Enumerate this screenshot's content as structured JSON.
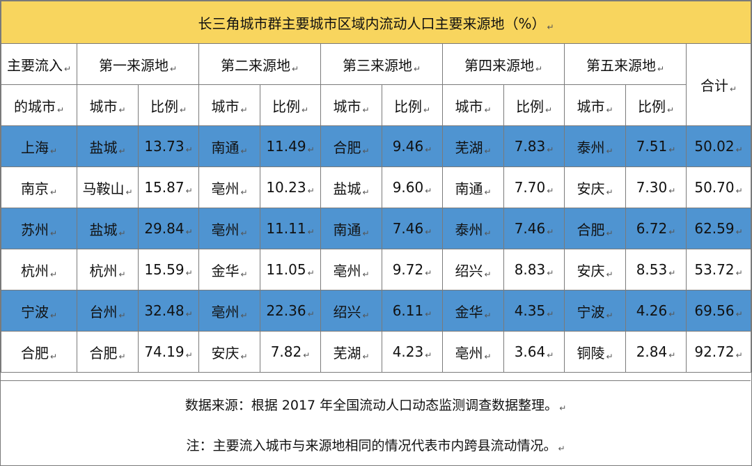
{
  "title": "长三角城市群主要城市区域内流动人口主要来源地（%）",
  "mark": "↵",
  "header": {
    "dest_line1": "主要流入",
    "dest_line2": "的城市",
    "groups": [
      "第一来源地",
      "第二来源地",
      "第三来源地",
      "第四来源地",
      "第五来源地"
    ],
    "total": "合计",
    "city": "城市",
    "ratio": "比例"
  },
  "rows": [
    {
      "dest": "上海",
      "src": [
        [
          "盐城",
          "13.73"
        ],
        [
          "南通",
          "11.49"
        ],
        [
          "合肥",
          "9.46"
        ],
        [
          "芜湖",
          "7.83"
        ],
        [
          "泰州",
          "7.51"
        ]
      ],
      "total": "50.02"
    },
    {
      "dest": "南京",
      "src": [
        [
          "马鞍山",
          "15.87"
        ],
        [
          "亳州",
          "10.23"
        ],
        [
          "盐城",
          "9.60"
        ],
        [
          "南通",
          "7.70"
        ],
        [
          "安庆",
          "7.30"
        ]
      ],
      "total": "50.70"
    },
    {
      "dest": "苏州",
      "src": [
        [
          "盐城",
          "29.84"
        ],
        [
          "亳州",
          "11.11"
        ],
        [
          "南通",
          "7.46"
        ],
        [
          "泰州",
          "7.46"
        ],
        [
          "合肥",
          "6.72"
        ]
      ],
      "total": "62.59"
    },
    {
      "dest": "杭州",
      "src": [
        [
          "杭州",
          "15.59"
        ],
        [
          "金华",
          "11.05"
        ],
        [
          "亳州",
          "9.72"
        ],
        [
          "绍兴",
          "8.83"
        ],
        [
          "安庆",
          "8.53"
        ]
      ],
      "total": "53.72"
    },
    {
      "dest": "宁波",
      "src": [
        [
          "台州",
          "32.48"
        ],
        [
          "亳州",
          "22.36"
        ],
        [
          "绍兴",
          "6.11"
        ],
        [
          "金华",
          "4.35"
        ],
        [
          "宁波",
          "4.26"
        ]
      ],
      "total": "69.56"
    },
    {
      "dest": "合肥",
      "src": [
        [
          "合肥",
          "74.19"
        ],
        [
          "安庆",
          "7.82"
        ],
        [
          "芜湖",
          "4.23"
        ],
        [
          "亳州",
          "3.64"
        ],
        [
          "铜陵",
          "2.84"
        ]
      ],
      "total": "92.72"
    }
  ],
  "notes": {
    "source": "数据来源：根据 2017 年全国流动人口动态监测调查数据整理。",
    "remark": "注：主要流入城市与来源地相同的情况代表市内跨县流动情况。"
  },
  "colors": {
    "title_bg": "#f8d55e",
    "highlight_row": "#4f94d1",
    "border": "#7a7a7a"
  }
}
